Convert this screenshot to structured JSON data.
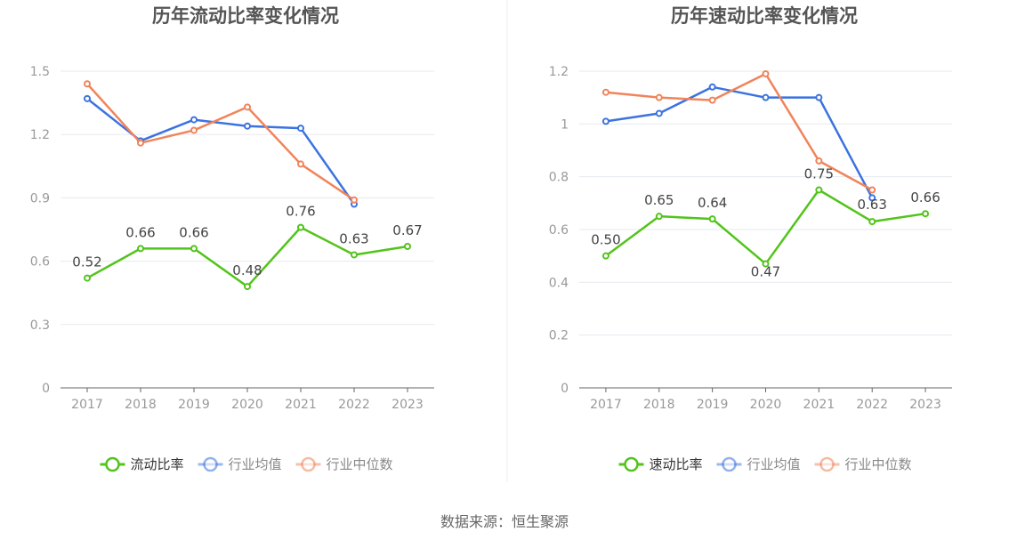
{
  "source": "数据来源：恒生聚源",
  "colors": {
    "company": "#52c41a",
    "industry_avg": "#3b73e0",
    "industry_median": "#f0845a",
    "axis": "#666666",
    "grid": "#e6e9ef",
    "tick_text": "#999999",
    "title_text": "#555555",
    "label_text": "#444444"
  },
  "chart_data": [
    {
      "type": "line",
      "title": "历年流动比率变化情况",
      "xlabel": "",
      "ylabel": "",
      "categories": [
        "2017",
        "2018",
        "2019",
        "2020",
        "2021",
        "2022",
        "2023"
      ],
      "ylim": [
        0,
        1.5
      ],
      "yticks": [
        0,
        0.3,
        0.6,
        0.9,
        1.2,
        1.5
      ],
      "ytick_labels": [
        "0",
        "0.3",
        "0.6",
        "0.9",
        "1.2",
        "1.5"
      ],
      "grid": true,
      "legend_position": "bottom",
      "series": [
        {
          "name": "流动比率",
          "color_key": "company",
          "values": [
            0.52,
            0.66,
            0.66,
            0.48,
            0.76,
            0.63,
            0.67
          ],
          "labels": [
            "0.52",
            "0.66",
            "0.66",
            "0.48",
            "0.76",
            "0.63",
            "0.67"
          ]
        },
        {
          "name": "行业均值",
          "color_key": "industry_avg",
          "values": [
            1.37,
            1.17,
            1.27,
            1.24,
            1.23,
            0.87,
            null
          ]
        },
        {
          "name": "行业中位数",
          "color_key": "industry_median",
          "values": [
            1.44,
            1.16,
            1.22,
            1.33,
            1.06,
            0.89,
            null
          ]
        }
      ]
    },
    {
      "type": "line",
      "title": "历年速动比率变化情况",
      "xlabel": "",
      "ylabel": "",
      "categories": [
        "2017",
        "2018",
        "2019",
        "2020",
        "2021",
        "2022",
        "2023"
      ],
      "ylim": [
        0,
        1.2
      ],
      "yticks": [
        0,
        0.2,
        0.4,
        0.6,
        0.8,
        1.0,
        1.2
      ],
      "ytick_labels": [
        "0",
        "0.2",
        "0.4",
        "0.6",
        "0.8",
        "1",
        "1.2"
      ],
      "grid": true,
      "legend_position": "bottom",
      "series": [
        {
          "name": "速动比率",
          "color_key": "company",
          "values": [
            0.5,
            0.65,
            0.64,
            0.47,
            0.75,
            0.63,
            0.66
          ],
          "labels": [
            "0.50",
            "0.65",
            "0.64",
            "0.47",
            "0.75",
            "0.63",
            "0.66"
          ]
        },
        {
          "name": "行业均值",
          "color_key": "industry_avg",
          "values": [
            1.01,
            1.04,
            1.14,
            1.1,
            1.1,
            0.72,
            null
          ]
        },
        {
          "name": "行业中位数",
          "color_key": "industry_median",
          "values": [
            1.12,
            1.1,
            1.09,
            1.19,
            0.86,
            0.75,
            null
          ]
        }
      ]
    }
  ]
}
